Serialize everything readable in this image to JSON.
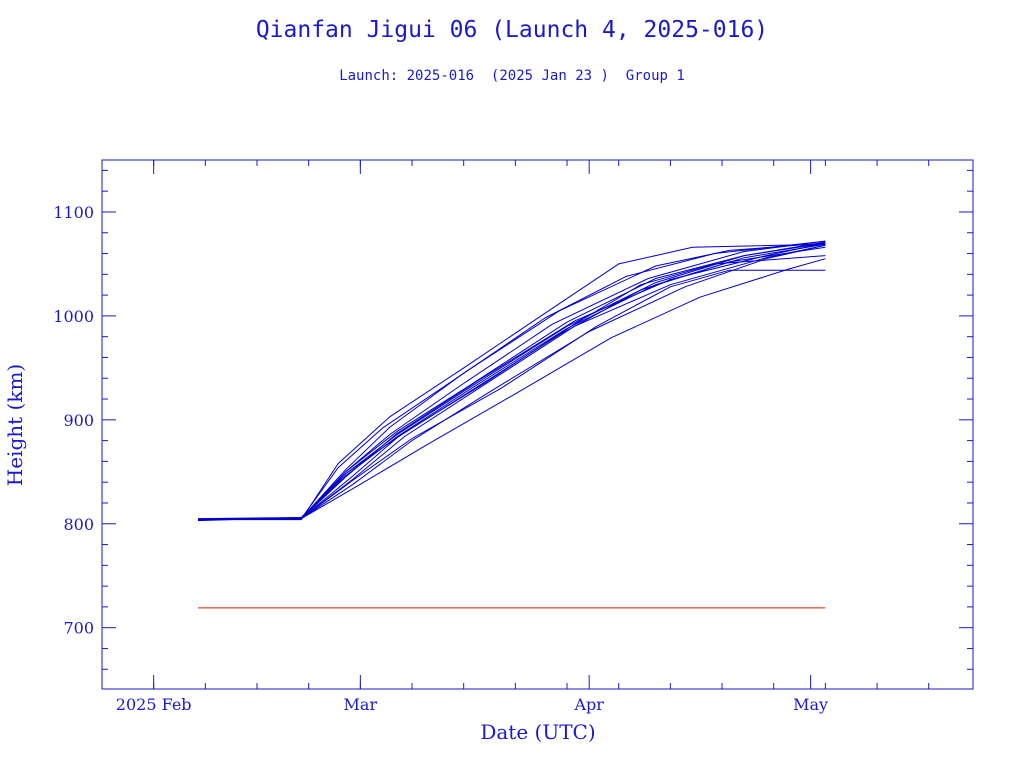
{
  "chart_data": {
    "type": "line",
    "title": "Qianfan Jigui 06 (Launch 4, 2025-016)",
    "subtitle": "Launch: 2025-016  (2025 Jan 23 )  Group 1",
    "xlabel": "Date (UTC)",
    "ylabel": "Height (km)",
    "xlim": [
      "2025-01-25",
      "2025-05-23"
    ],
    "ylim": [
      641,
      1150
    ],
    "x_ticks": [
      {
        "label": "2025 Feb",
        "date": "2025-02-01"
      },
      {
        "label": "Mar",
        "date": "2025-03-01"
      },
      {
        "label": "Apr",
        "date": "2025-04-01"
      },
      {
        "label": "May",
        "date": "2025-05-01"
      }
    ],
    "y_ticks": [
      700,
      800,
      900,
      1000,
      1100
    ],
    "grid": false,
    "colors": {
      "series": "#0000cc",
      "reference": "#dd2200",
      "axes": "#1a1acc"
    },
    "reference_line": {
      "y": 719,
      "x": [
        "2025-02-07",
        "2025-05-03"
      ]
    },
    "series": [
      {
        "values": [
          [
            "2025-02-07",
            804
          ],
          [
            "2025-02-21",
            804
          ],
          [
            "2025-02-26",
            858
          ],
          [
            "2025-03-05",
            903
          ],
          [
            "2025-03-15",
            950
          ],
          [
            "2025-03-28",
            1012
          ],
          [
            "2025-04-05",
            1050
          ],
          [
            "2025-04-15",
            1066
          ],
          [
            "2025-05-03",
            1069
          ]
        ]
      },
      {
        "values": [
          [
            "2025-02-07",
            804
          ],
          [
            "2025-02-21",
            805
          ],
          [
            "2025-02-27",
            852
          ],
          [
            "2025-03-05",
            893
          ],
          [
            "2025-03-15",
            945
          ],
          [
            "2025-03-28",
            1005
          ],
          [
            "2025-04-10",
            1048
          ],
          [
            "2025-04-20",
            1063
          ],
          [
            "2025-05-03",
            1070
          ]
        ]
      },
      {
        "values": [
          [
            "2025-02-07",
            804
          ],
          [
            "2025-02-21",
            805
          ],
          [
            "2025-02-27",
            845
          ],
          [
            "2025-03-06",
            887
          ],
          [
            "2025-03-17",
            938
          ],
          [
            "2025-03-30",
            995
          ],
          [
            "2025-04-12",
            1035
          ],
          [
            "2025-04-25",
            1058
          ],
          [
            "2025-05-03",
            1070
          ]
        ]
      },
      {
        "values": [
          [
            "2025-02-07",
            804
          ],
          [
            "2025-02-21",
            805
          ],
          [
            "2025-02-28",
            838
          ],
          [
            "2025-03-08",
            880
          ],
          [
            "2025-03-19",
            929
          ],
          [
            "2025-04-01",
            985
          ],
          [
            "2025-04-14",
            1028
          ],
          [
            "2025-04-25",
            1055
          ],
          [
            "2025-05-03",
            1068
          ]
        ]
      },
      {
        "values": [
          [
            "2025-02-07",
            804
          ],
          [
            "2025-02-21",
            805
          ],
          [
            "2025-02-27",
            848
          ],
          [
            "2025-03-07",
            888
          ],
          [
            "2025-03-18",
            936
          ],
          [
            "2025-03-30",
            992
          ],
          [
            "2025-04-08",
            1030
          ],
          [
            "2025-04-18",
            1050
          ],
          [
            "2025-05-03",
            1058
          ]
        ]
      },
      {
        "values": [
          [
            "2025-02-07",
            804
          ],
          [
            "2025-02-21",
            805
          ],
          [
            "2025-02-28",
            842
          ],
          [
            "2025-03-08",
            882
          ],
          [
            "2025-03-20",
            930
          ],
          [
            "2025-04-02",
            990
          ],
          [
            "2025-04-12",
            1028
          ],
          [
            "2025-04-20",
            1044
          ],
          [
            "2025-05-03",
            1044
          ]
        ]
      },
      {
        "values": [
          [
            "2025-02-07",
            804
          ],
          [
            "2025-02-21",
            805
          ],
          [
            "2025-02-27",
            850
          ],
          [
            "2025-03-06",
            889
          ],
          [
            "2025-03-16",
            934
          ],
          [
            "2025-03-29",
            994
          ],
          [
            "2025-04-10",
            1036
          ],
          [
            "2025-04-22",
            1058
          ],
          [
            "2025-05-03",
            1071
          ]
        ]
      },
      {
        "values": [
          [
            "2025-02-07",
            804
          ],
          [
            "2025-02-21",
            805
          ],
          [
            "2025-02-28",
            843
          ],
          [
            "2025-03-07",
            884
          ],
          [
            "2025-03-17",
            930
          ],
          [
            "2025-03-30",
            990
          ],
          [
            "2025-04-12",
            1030
          ],
          [
            "2025-04-25",
            1056
          ],
          [
            "2025-05-03",
            1068
          ]
        ]
      },
      {
        "values": [
          [
            "2025-02-07",
            804
          ],
          [
            "2025-02-21",
            805
          ],
          [
            "2025-03-01",
            838
          ],
          [
            "2025-03-10",
            876
          ],
          [
            "2025-03-22",
            925
          ],
          [
            "2025-04-04",
            979
          ],
          [
            "2025-04-16",
            1018
          ],
          [
            "2025-04-28",
            1045
          ],
          [
            "2025-05-03",
            1055
          ]
        ]
      },
      {
        "values": [
          [
            "2025-02-07",
            804
          ],
          [
            "2025-02-21",
            805
          ],
          [
            "2025-02-26",
            854
          ],
          [
            "2025-03-04",
            892
          ],
          [
            "2025-03-14",
            940
          ],
          [
            "2025-03-26",
            998
          ],
          [
            "2025-04-06",
            1038
          ],
          [
            "2025-04-18",
            1060
          ],
          [
            "2025-05-03",
            1072
          ]
        ]
      },
      {
        "values": [
          [
            "2025-02-07",
            804
          ],
          [
            "2025-02-21",
            805
          ],
          [
            "2025-02-28",
            846
          ],
          [
            "2025-03-06",
            883
          ],
          [
            "2025-03-16",
            928
          ],
          [
            "2025-03-28",
            982
          ],
          [
            "2025-04-08",
            1025
          ],
          [
            "2025-04-20",
            1052
          ],
          [
            "2025-05-03",
            1066
          ]
        ]
      },
      {
        "values": [
          [
            "2025-02-07",
            804
          ],
          [
            "2025-02-21",
            805
          ],
          [
            "2025-02-27",
            850
          ],
          [
            "2025-03-05",
            886
          ],
          [
            "2025-03-15",
            935
          ],
          [
            "2025-03-27",
            992
          ],
          [
            "2025-04-09",
            1036
          ],
          [
            "2025-04-22",
            1062
          ],
          [
            "2025-05-03",
            1072
          ]
        ]
      },
      {
        "values": [
          [
            "2025-02-07",
            803
          ],
          [
            "2025-02-21",
            806
          ],
          [
            "2025-02-27",
            848
          ],
          [
            "2025-03-06",
            886
          ],
          [
            "2025-03-16",
            932
          ],
          [
            "2025-03-29",
            990
          ],
          [
            "2025-04-10",
            1032
          ],
          [
            "2025-04-22",
            1058
          ],
          [
            "2025-05-03",
            1070
          ]
        ]
      },
      {
        "values": [
          [
            "2025-02-07",
            805
          ],
          [
            "2025-02-21",
            806
          ],
          [
            "2025-02-27",
            846
          ],
          [
            "2025-03-06",
            884
          ],
          [
            "2025-03-16",
            930
          ],
          [
            "2025-03-29",
            988
          ],
          [
            "2025-04-10",
            1030
          ],
          [
            "2025-04-22",
            1056
          ],
          [
            "2025-05-03",
            1069
          ]
        ]
      }
    ]
  }
}
